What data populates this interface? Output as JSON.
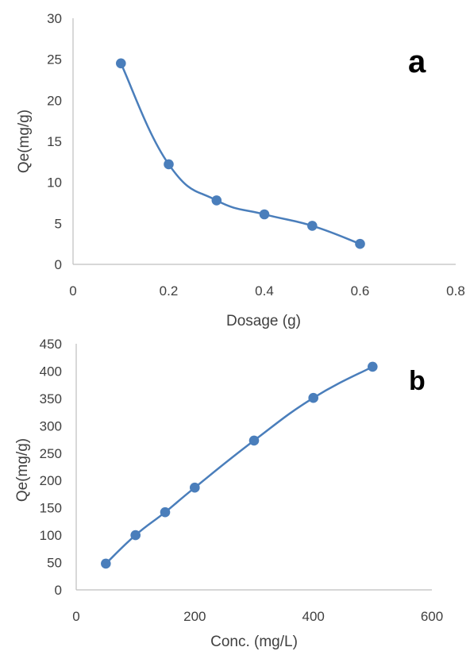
{
  "chart_data": [
    {
      "type": "line",
      "panel_label": "a",
      "title": "",
      "xlabel": "Dosage (g)",
      "ylabel": "Qe(mg/g)",
      "xlim": [
        0,
        0.8
      ],
      "ylim": [
        0,
        30
      ],
      "x_ticks": [
        "0",
        "0.2",
        "0.4",
        "0.6",
        "0.8"
      ],
      "y_ticks": [
        "0",
        "5",
        "10",
        "15",
        "20",
        "25",
        "30"
      ],
      "grid": false,
      "legend": "none",
      "smooth": true,
      "color": "#4a7ebb",
      "series": [
        {
          "x": [
            0.1,
            0.2,
            0.3,
            0.4,
            0.5,
            0.6
          ],
          "y": [
            24.5,
            12.2,
            7.8,
            6.1,
            4.7,
            2.5
          ]
        }
      ]
    },
    {
      "type": "line",
      "panel_label": "b",
      "title": "",
      "xlabel": "Conc. (mg/L)",
      "ylabel": "Qe(mg/g)",
      "xlim": [
        0,
        600
      ],
      "ylim": [
        0,
        450
      ],
      "x_ticks": [
        "0",
        "200",
        "400",
        "600"
      ],
      "y_ticks": [
        "0",
        "50",
        "100",
        "150",
        "200",
        "250",
        "300",
        "350",
        "400",
        "450"
      ],
      "grid": false,
      "legend": "none",
      "smooth": true,
      "color": "#4a7ebb",
      "series": [
        {
          "x": [
            50,
            100,
            150,
            200,
            300,
            400,
            500
          ],
          "y": [
            48,
            100,
            142,
            187,
            273,
            351,
            408
          ]
        }
      ]
    }
  ]
}
